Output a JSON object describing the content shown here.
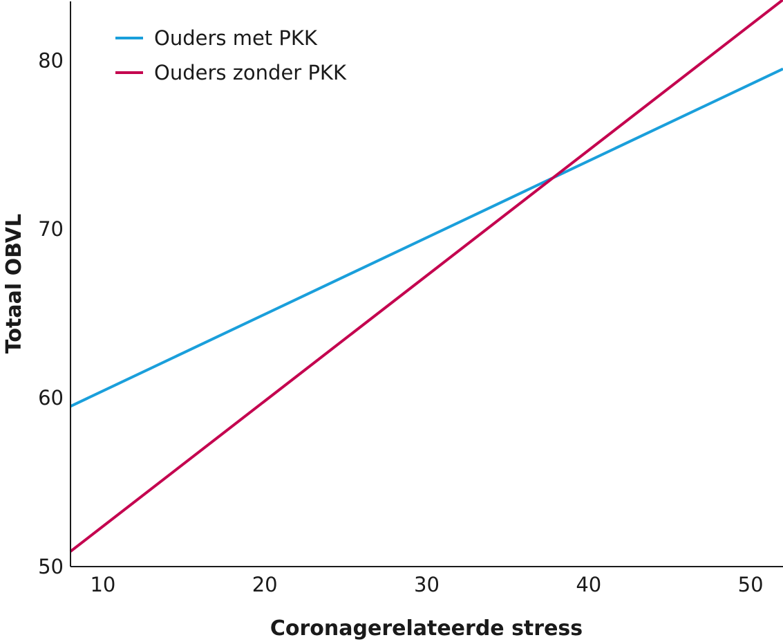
{
  "chart_data": {
    "type": "line",
    "xlabel": "Coronagerelateerde stress",
    "ylabel": "Totaal OBVL",
    "xlim": [
      8,
      52
    ],
    "ylim": [
      50,
      83.5
    ],
    "xticks": [
      10,
      20,
      30,
      40,
      50
    ],
    "yticks": [
      50,
      60,
      70,
      80
    ],
    "grid": false,
    "legend_position": "top-left",
    "series": [
      {
        "name": "Ouders met PKK",
        "color": "#1a9fdb",
        "x": [
          8,
          52
        ],
        "y": [
          59.5,
          79.5
        ]
      },
      {
        "name": "Ouders zonder PKK",
        "color": "#c4044f",
        "x": [
          8,
          52
        ],
        "y": [
          50.9,
          83.6
        ]
      }
    ]
  }
}
